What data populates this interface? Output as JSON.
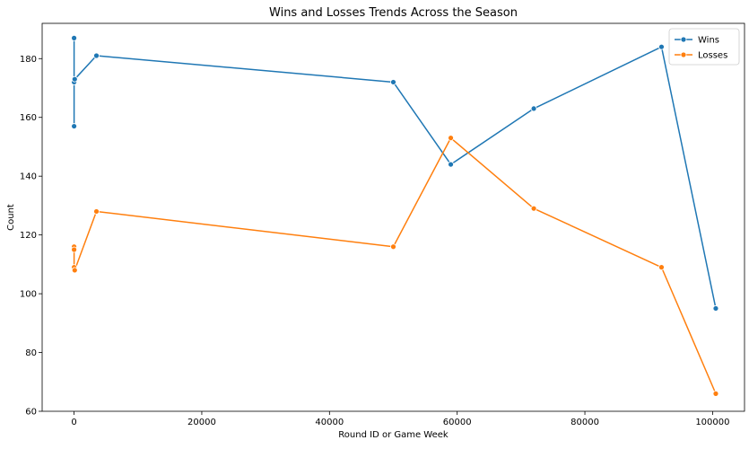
{
  "chart_data": {
    "type": "line",
    "title": "Wins and Losses Trends Across the Season",
    "xlabel": "Round ID or Game Week",
    "ylabel": "Count",
    "xlim": [
      -5000,
      105000
    ],
    "ylim": [
      60,
      192
    ],
    "x_ticks": [
      0,
      20000,
      40000,
      60000,
      80000,
      100000
    ],
    "y_ticks": [
      60,
      80,
      100,
      120,
      140,
      160,
      180
    ],
    "grid": false,
    "legend_position": "top-right",
    "colors": {
      "Wins": "#1f77b4",
      "Losses": "#ff7f0e"
    },
    "series": [
      {
        "name": "Wins",
        "color": "#1f77b4",
        "points": [
          {
            "x": 1,
            "y": 187
          },
          {
            "x": 2,
            "y": 157
          },
          {
            "x": 3,
            "y": 172
          },
          {
            "x": 100,
            "y": 173
          },
          {
            "x": 3500,
            "y": 181
          },
          {
            "x": 50000,
            "y": 172
          },
          {
            "x": 59000,
            "y": 144
          },
          {
            "x": 72000,
            "y": 163
          },
          {
            "x": 92000,
            "y": 184
          },
          {
            "x": 100500,
            "y": 95
          }
        ]
      },
      {
        "name": "Losses",
        "color": "#ff7f0e",
        "points": [
          {
            "x": 1,
            "y": 116
          },
          {
            "x": 2,
            "y": 115
          },
          {
            "x": 3,
            "y": 109
          },
          {
            "x": 100,
            "y": 108
          },
          {
            "x": 3500,
            "y": 128
          },
          {
            "x": 50000,
            "y": 116
          },
          {
            "x": 59000,
            "y": 153
          },
          {
            "x": 72000,
            "y": 129
          },
          {
            "x": 92000,
            "y": 109
          },
          {
            "x": 100500,
            "y": 66
          }
        ]
      }
    ]
  }
}
